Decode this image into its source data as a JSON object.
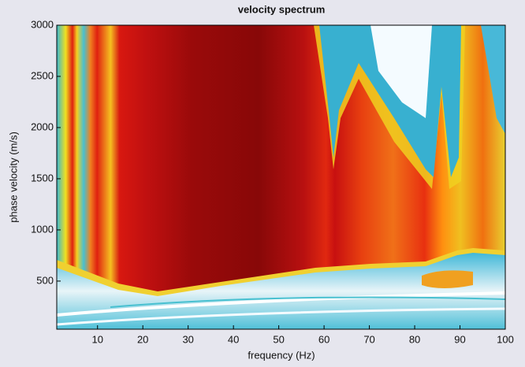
{
  "chart_data": {
    "type": "heatmap",
    "title": "velocity spectrum",
    "x_label": "frequency (Hz)",
    "y_label": "phase velocity (m/s)",
    "xlim": [
      1,
      100
    ],
    "xticks": [
      10,
      20,
      30,
      40,
      50,
      60,
      70,
      80,
      90,
      100
    ],
    "ylim": [
      30,
      3000
    ],
    "yticks": [
      500,
      1000,
      1500,
      2000,
      2500,
      3000
    ]
  }
}
